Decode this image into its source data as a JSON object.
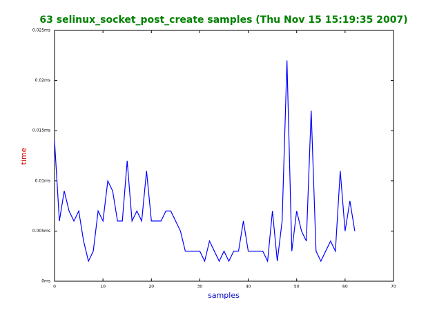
{
  "chart_data": {
    "type": "line",
    "title": "63 selinux_socket_post_create samples (Thu Nov 15 15:19:35 2007)",
    "xlabel": "samples",
    "ylabel": "time",
    "x": [
      0,
      1,
      2,
      3,
      4,
      5,
      6,
      7,
      8,
      9,
      10,
      11,
      12,
      13,
      14,
      15,
      16,
      17,
      18,
      19,
      20,
      21,
      22,
      23,
      24,
      25,
      26,
      27,
      28,
      29,
      30,
      31,
      32,
      33,
      34,
      35,
      36,
      37,
      38,
      39,
      40,
      41,
      42,
      43,
      44,
      45,
      46,
      47,
      48,
      49,
      50,
      51,
      52,
      53,
      54,
      55,
      56,
      57,
      58,
      59,
      60,
      61,
      62
    ],
    "series": [
      {
        "name": "time",
        "color": "#0000ff",
        "values": [
          0.014,
          0.006,
          0.009,
          0.007,
          0.006,
          0.007,
          0.004,
          0.002,
          0.003,
          0.007,
          0.006,
          0.01,
          0.009,
          0.006,
          0.006,
          0.012,
          0.006,
          0.007,
          0.006,
          0.011,
          0.006,
          0.006,
          0.006,
          0.007,
          0.007,
          0.006,
          0.005,
          0.003,
          0.003,
          0.003,
          0.003,
          0.002,
          0.004,
          0.003,
          0.002,
          0.003,
          0.002,
          0.003,
          0.003,
          0.006,
          0.003,
          0.003,
          0.003,
          0.003,
          0.002,
          0.007,
          0.002,
          0.006,
          0.022,
          0.003,
          0.007,
          0.005,
          0.004,
          0.017,
          0.003,
          0.002,
          0.003,
          0.004,
          0.003,
          0.011,
          0.005,
          0.008,
          0.005
        ]
      }
    ],
    "xlim": [
      0,
      70
    ],
    "xticks": [
      0,
      10,
      20,
      30,
      40,
      50,
      60,
      70
    ],
    "ylim": [
      0,
      0.025
    ],
    "yticks": [
      {
        "value": 0,
        "label": "0ms"
      },
      {
        "value": 0.005,
        "label": "0.005ms"
      },
      {
        "value": 0.01,
        "label": "0.01ms"
      },
      {
        "value": 0.015,
        "label": "0.015ms"
      },
      {
        "value": 0.02,
        "label": "0.02ms"
      },
      {
        "value": 0.025,
        "label": "0.025ms"
      }
    ],
    "grid": false
  }
}
